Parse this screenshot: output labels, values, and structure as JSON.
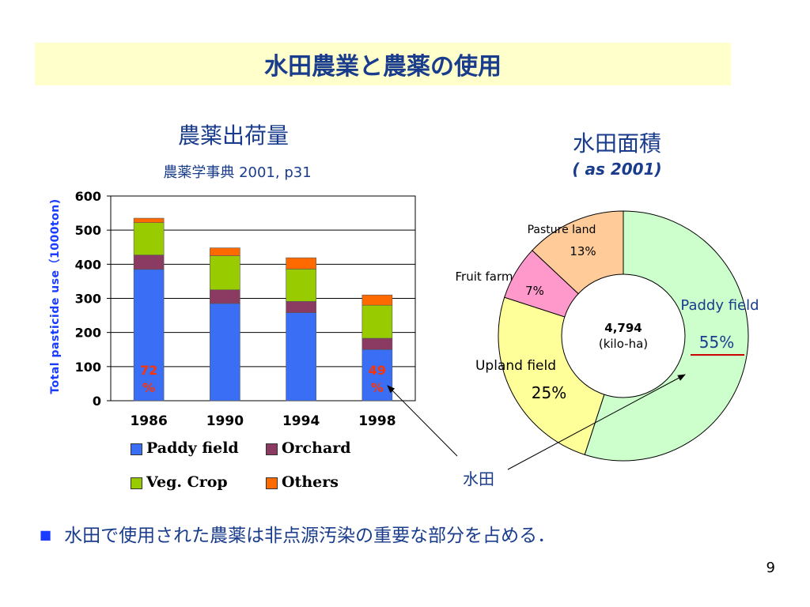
{
  "slide": {
    "title": "水田農業と農薬の使用",
    "bar_heading": "農薬出荷量",
    "bar_source": "農薬学事典  2001, p31",
    "pie_heading": "水田面積",
    "pie_sub": "( as 2001)",
    "suiden_label": "水田",
    "bullet": "水田で使用された農薬は非点源汚染の重要な部分を占める．",
    "page_number": "9"
  },
  "chart_data": [
    {
      "type": "bar",
      "stacked": true,
      "ylabel": "Total pasticide use（1000ton)",
      "ylim": [
        0,
        600
      ],
      "yticks": [
        "0",
        "100",
        "200",
        "300",
        "400",
        "500",
        "600"
      ],
      "grid": true,
      "categories": [
        "1986",
        "1990",
        "1994",
        "1998"
      ],
      "series": [
        {
          "name": "Paddy field",
          "color": "#3a6ef5",
          "values": [
            385,
            285,
            258,
            150
          ]
        },
        {
          "name": "Orchard",
          "color": "#8b3a62",
          "values": [
            42,
            40,
            33,
            33
          ]
        },
        {
          "name": "Veg. Crop",
          "color": "#99cc00",
          "values": [
            95,
            100,
            95,
            97
          ]
        },
        {
          "name": "Others",
          "color": "#ff6a00",
          "values": [
            13,
            23,
            33,
            30
          ]
        }
      ],
      "annotations": [
        {
          "category": "1986",
          "line1": "72",
          "line2": "%"
        },
        {
          "category": "1998",
          "line1": "49",
          "line2": "%"
        }
      ],
      "legend_placement": "bottom"
    },
    {
      "type": "pie",
      "donut": true,
      "center_value": "4,794",
      "center_unit": "(kilo-ha)",
      "slices": [
        {
          "label": "Paddy field",
          "value": 55,
          "pct_label": "55%",
          "color": "#ccffcc"
        },
        {
          "label": "Upland field",
          "value": 25,
          "pct_label": "25%",
          "color": "#ffff99"
        },
        {
          "label": "Fruit farm",
          "value": 7,
          "pct_label": "7%",
          "color": "#ff99cc"
        },
        {
          "label": "Pasture land",
          "value": 13,
          "pct_label": "13%",
          "color": "#ffcc99"
        }
      ]
    }
  ]
}
